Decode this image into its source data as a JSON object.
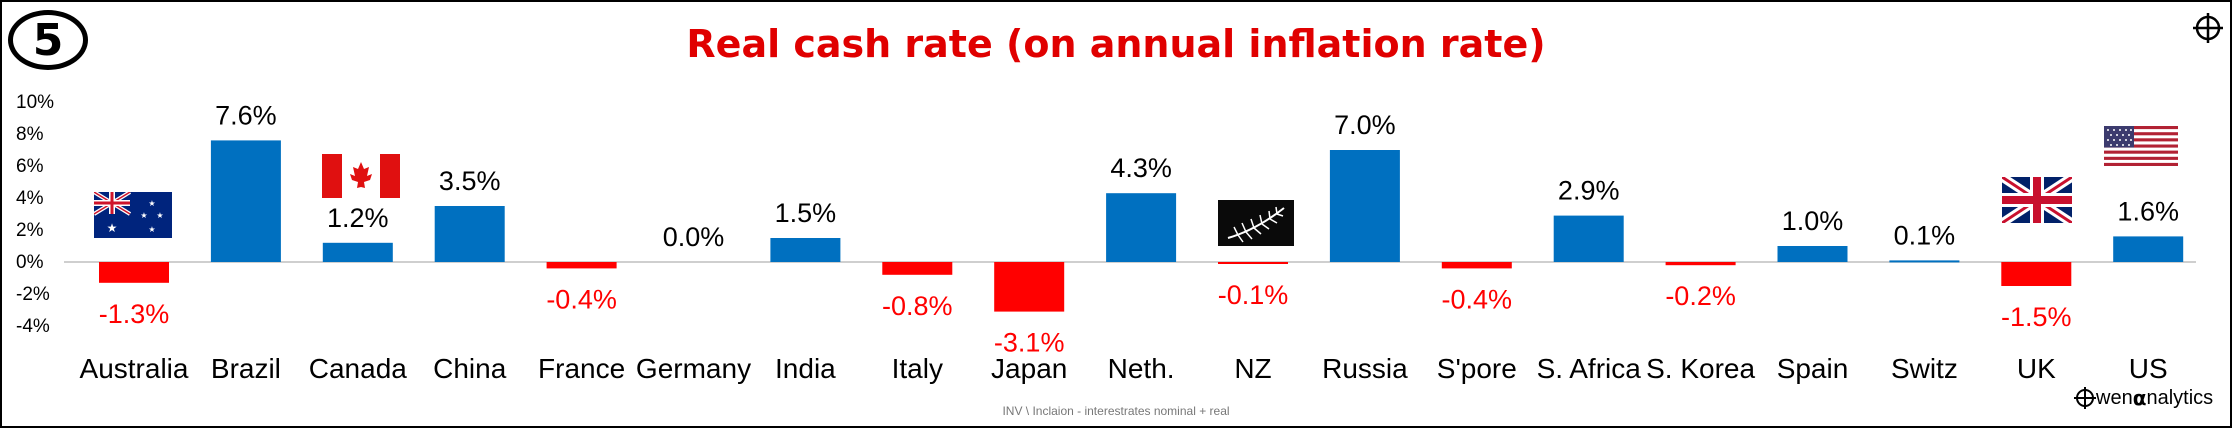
{
  "badge": "5",
  "title": "Real cash rate (on annual inflation rate)",
  "footer": "INV \\ Inclaion - interestrates nominal + real",
  "brand": {
    "prefix": "wen ",
    "alpha": "α",
    "suffix": "nalytics"
  },
  "colors": {
    "positive": "#0070C0",
    "negative": "#FF0000",
    "title": "#E00000"
  },
  "icons": [
    "crosshair-icon",
    "australia-flag-icon",
    "canada-flag-icon",
    "new-zealand-fern-flag-icon",
    "uk-flag-icon",
    "us-flag-icon"
  ],
  "chart_data": {
    "type": "bar",
    "title": "Real cash rate (on annual inflation rate)",
    "xlabel": "",
    "ylabel": "",
    "ylim": [
      -4,
      10
    ],
    "y_ticks": [
      "10%",
      "8%",
      "6%",
      "4%",
      "2%",
      "0%",
      "-2%",
      "-4%"
    ],
    "grid": false,
    "categories": [
      "Australia",
      "Brazil",
      "Canada",
      "China",
      "France",
      "Germany",
      "India",
      "Italy",
      "Japan",
      "Neth.",
      "NZ",
      "Russia",
      "S'pore",
      "S. Africa",
      "S. Korea",
      "Spain",
      "Switz",
      "UK",
      "US"
    ],
    "values": [
      -1.3,
      7.6,
      1.2,
      3.5,
      -0.4,
      0.0,
      1.5,
      -0.8,
      -3.1,
      4.3,
      -0.1,
      7.0,
      -0.4,
      2.9,
      -0.2,
      1.0,
      0.1,
      -1.5,
      1.6
    ],
    "labels": [
      "-1.3%",
      "7.6%",
      "1.2%",
      "3.5%",
      "-0.4%",
      "0.0%",
      "1.5%",
      "-0.8%",
      "-3.1%",
      "4.3%",
      "-0.1%",
      "7.0%",
      "-0.4%",
      "2.9%",
      "-0.2%",
      "1.0%",
      "0.1%",
      "-1.5%",
      "1.6%"
    ]
  }
}
